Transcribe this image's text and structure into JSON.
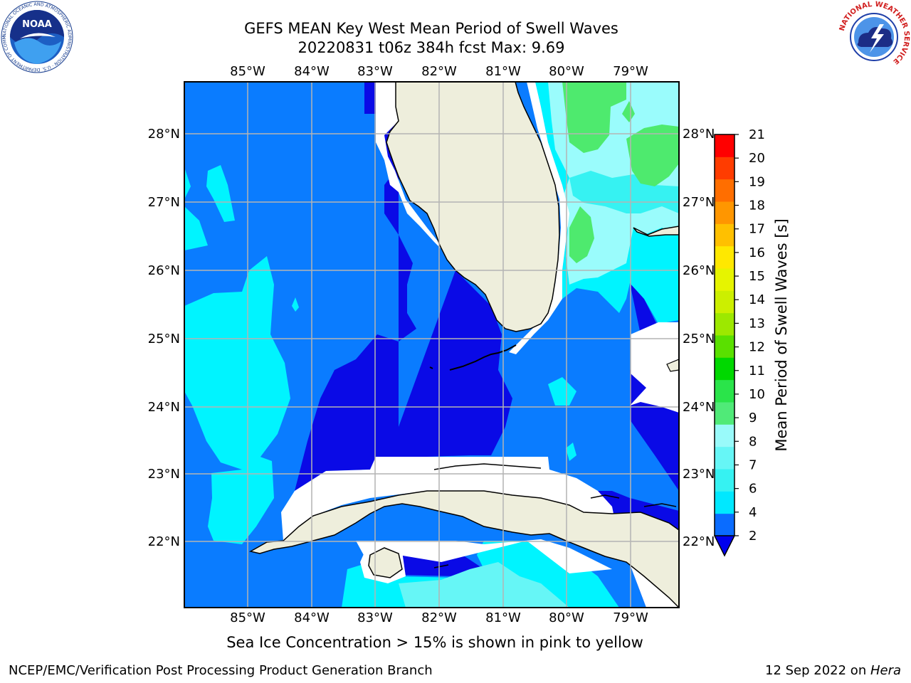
{
  "title": {
    "line1": "GEFS MEAN Key West Mean Period of Swell Waves",
    "line2": "20220831 t06z 384h fcst   Max: 9.69"
  },
  "map": {
    "lon_labels": [
      "85°W",
      "84°W",
      "83°W",
      "82°W",
      "81°W",
      "80°W",
      "79°W"
    ],
    "lat_labels": [
      "28°N",
      "27°N",
      "26°N",
      "25°N",
      "24°N",
      "23°N",
      "22°N"
    ]
  },
  "colorbar": {
    "label": "Mean Period of Swell Waves [s]",
    "ticks": [
      "2",
      "4",
      "6",
      "7",
      "8",
      "9",
      "10",
      "11",
      "12",
      "13",
      "14",
      "15",
      "16",
      "17",
      "18",
      "19",
      "20",
      "21"
    ],
    "colors": [
      "#0a6cff",
      "#00e8ff",
      "#36f2f2",
      "#66f6f6",
      "#99fafa",
      "#50ea78",
      "#2ae44a",
      "#00d800",
      "#5ae000",
      "#9de800",
      "#ccef00",
      "#e6f400",
      "#ffe800",
      "#ffc000",
      "#ff9600",
      "#ff6e00",
      "#ff3c00",
      "#ff0000"
    ],
    "extend_color": "#0000ee"
  },
  "colors": {
    "land": "#eeeedc",
    "blue": "#0a7cff",
    "deep_blue": "#0a0ae6",
    "cyan": "#00f4ff",
    "light_cyan": "#9afcfc",
    "green": "#4eea6e",
    "grid": "#b4b4b4"
  },
  "logos": {
    "noaa_text": "NOAA",
    "noaa_ring": "NATIONAL OCEANIC AND ATMOSPHERIC ADMINISTRATION · U.S. DEPARTMENT OF COMMERCE",
    "nws_ring": "NATIONAL WEATHER SERVICE"
  },
  "note": "Sea Ice Concentration > 15% is shown in pink to yellow",
  "footer": {
    "left": "NCEP/EMC/Verification Post Processing Product Generation Branch",
    "right_prefix": "12 Sep 2022 on ",
    "right_host": "Hera"
  }
}
